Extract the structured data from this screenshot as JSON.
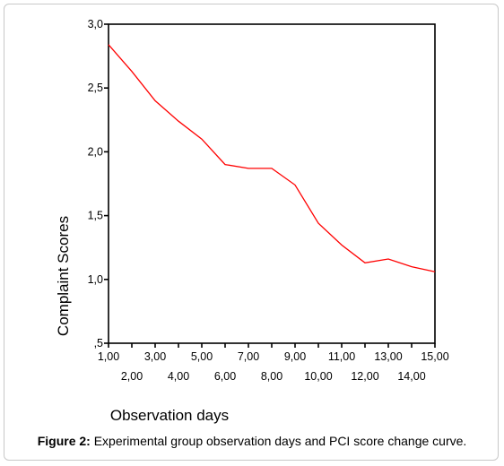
{
  "chart_data": {
    "type": "line",
    "xlabel": "Observation days",
    "ylabel": "Complaint Scores",
    "xlim": [
      1,
      15
    ],
    "ylim": [
      0.5,
      3.0
    ],
    "x_tick_labels": [
      "1,00",
      "2,00",
      "3,00",
      "4,00",
      "5,00",
      "6,00",
      "7,00",
      "8,00",
      "9,00",
      "10,00",
      "11,00",
      "12,00",
      "13,00",
      "14,00",
      "15,00"
    ],
    "y_tick_labels": [
      ",5",
      "1,0",
      "1,5",
      "2,0",
      "2,5",
      "3,0"
    ],
    "grid": false,
    "series": [
      {
        "color": "#ff0000",
        "x": [
          1,
          2,
          3,
          4,
          5,
          6,
          7,
          8,
          9,
          10,
          11,
          12,
          13,
          14,
          15
        ],
        "y": [
          2.84,
          2.63,
          2.4,
          2.24,
          2.1,
          1.9,
          1.87,
          1.87,
          1.74,
          1.44,
          1.27,
          1.13,
          1.16,
          1.1,
          1.06
        ]
      }
    ]
  },
  "caption": {
    "label": "Figure 2:",
    "text": " Experimental group observation days and PCI score change curve."
  }
}
